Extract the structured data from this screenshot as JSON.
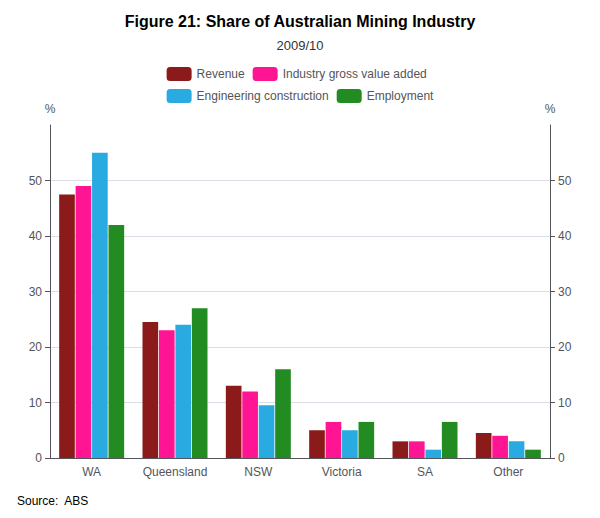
{
  "chart_data": {
    "type": "bar",
    "title": "Figure 21: Share of Australian Mining Industry",
    "subtitle": "2009/10",
    "source": "Source:  ABS",
    "categories": [
      "WA",
      "Queensland",
      "NSW",
      "Victoria",
      "SA",
      "Other"
    ],
    "series": [
      {
        "name": "Revenue",
        "color": "#8B1A1A",
        "values": [
          47.5,
          24.5,
          13.0,
          5.0,
          3.0,
          4.5
        ]
      },
      {
        "name": "Industry gross value added",
        "color": "#FF1493",
        "values": [
          49.0,
          23.0,
          12.0,
          6.5,
          3.0,
          4.0
        ]
      },
      {
        "name": "Engineering construction",
        "color": "#29ABE2",
        "values": [
          55.0,
          24.0,
          9.5,
          5.0,
          1.5,
          3.0
        ]
      },
      {
        "name": "Employment",
        "color": "#228B22",
        "values": [
          42.0,
          27.0,
          16.0,
          6.5,
          6.5,
          1.5
        ]
      }
    ],
    "ylabel": "%",
    "ylim": [
      0,
      60
    ],
    "yticks": [
      0,
      10,
      20,
      30,
      40,
      50
    ],
    "y2label": "%",
    "y2lim": [
      0,
      60
    ],
    "y2ticks": [
      0,
      10,
      20,
      30,
      40,
      50
    ],
    "grid": true,
    "legend": "top"
  }
}
